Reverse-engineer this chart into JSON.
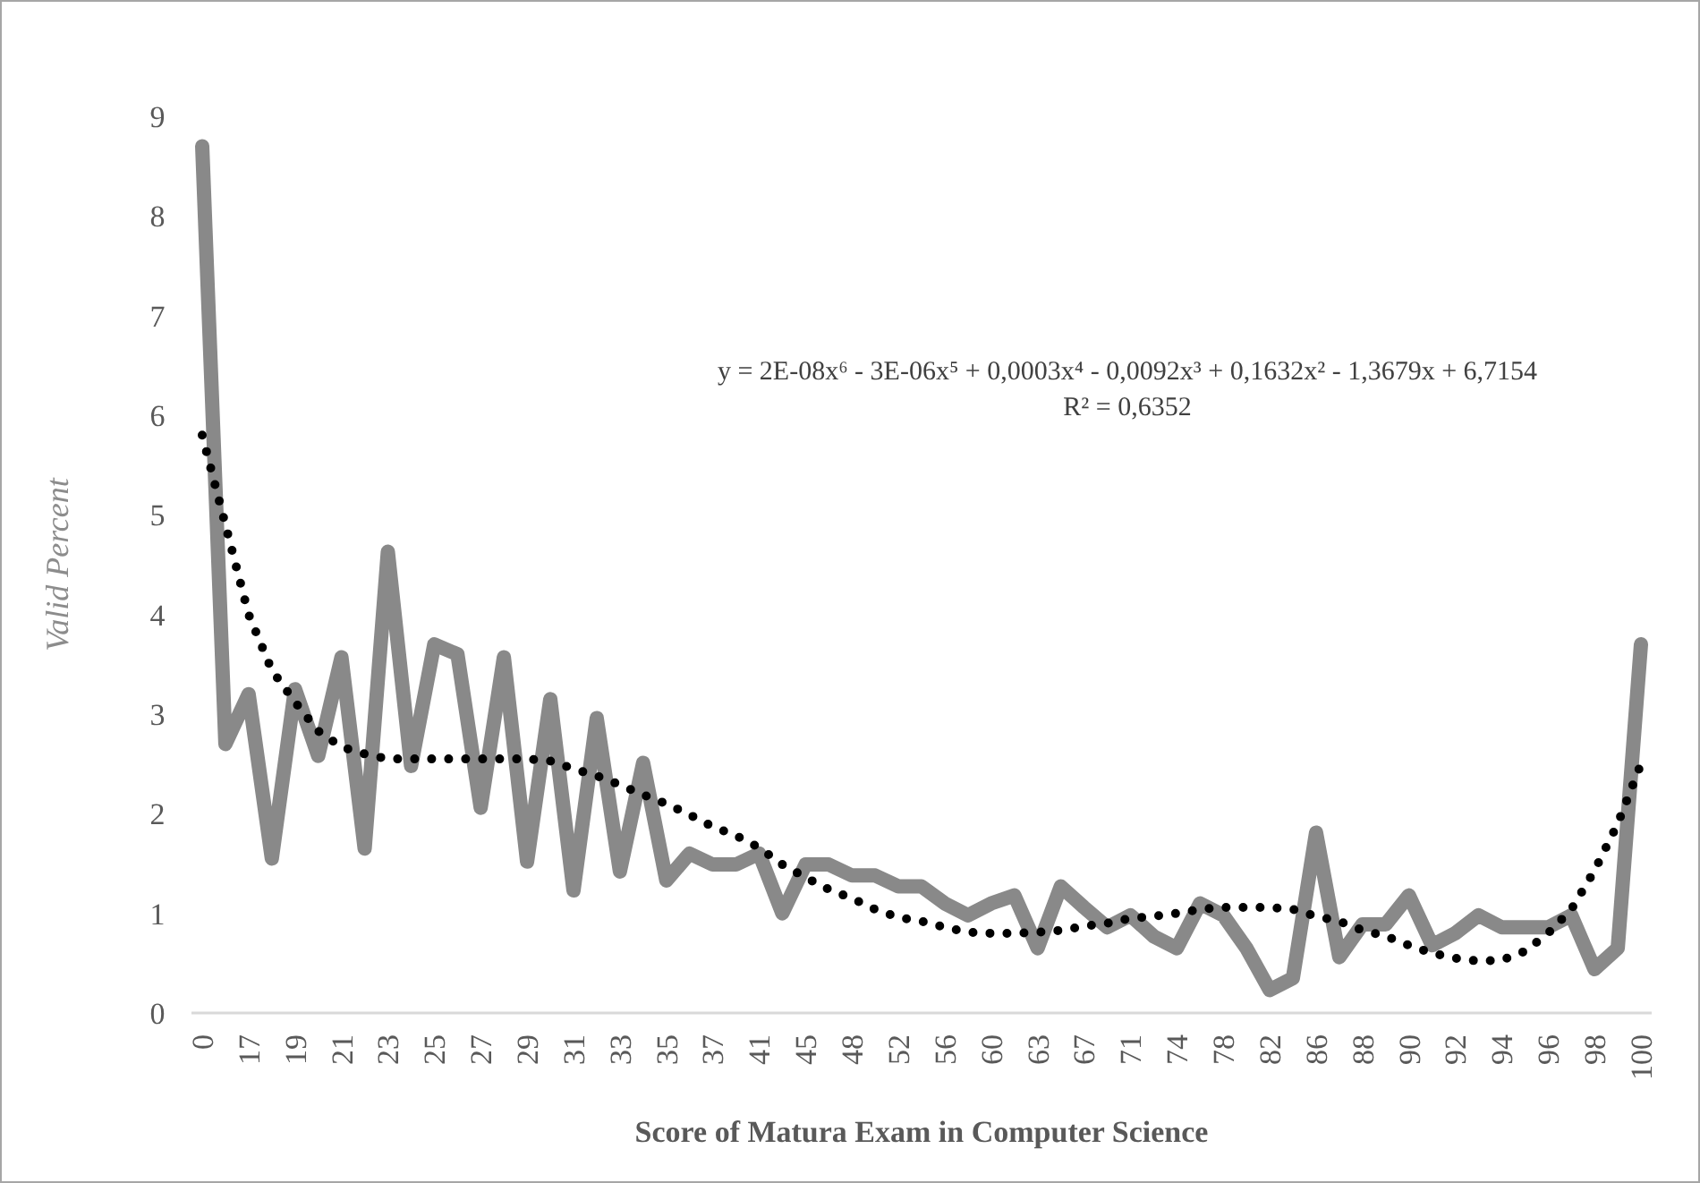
{
  "chart_data": {
    "type": "line",
    "xlabel": "Score of Matura Exam in Computer Science",
    "ylabel": "Valid Percent",
    "annotations": [
      "y = 2E-08x⁶ - 3E-06x⁵ + 0,0003x⁴ - 0,0092x³ + 0,1632x² - 1,3679x + 6,7154",
      "R² = 0,6352"
    ],
    "categories": [
      "0",
      null,
      "17",
      null,
      "19",
      null,
      "21",
      null,
      "23",
      null,
      "25",
      null,
      "27",
      null,
      "29",
      null,
      "31",
      null,
      "33",
      null,
      "35",
      null,
      "37",
      null,
      "41",
      null,
      "45",
      null,
      "48",
      null,
      "52",
      null,
      "56",
      null,
      "60",
      null,
      "63",
      null,
      "67",
      null,
      "71",
      null,
      "74",
      null,
      "78",
      null,
      "82",
      null,
      "86",
      null,
      "88",
      null,
      "90",
      null,
      "92",
      null,
      "94",
      null,
      "96",
      null,
      "98",
      null,
      "100"
    ],
    "series": [
      {
        "color": "#898989",
        "line_style": "solid",
        "values": [
          8.7,
          2.7,
          3.2,
          1.55,
          3.25,
          2.58,
          3.57,
          1.65,
          4.63,
          2.48,
          3.7,
          3.6,
          2.06,
          3.57,
          1.52,
          3.15,
          1.23,
          2.96,
          1.42,
          2.51,
          1.33,
          1.6,
          1.49,
          1.49,
          1.6,
          1.0,
          1.49,
          1.49,
          1.38,
          1.38,
          1.27,
          1.27,
          1.1,
          0.98,
          1.1,
          1.18,
          0.65,
          1.27,
          1.06,
          0.86,
          0.98,
          0.77,
          0.65,
          1.1,
          0.98,
          0.65,
          0.23,
          0.35,
          1.81,
          0.56,
          0.89,
          0.89,
          1.18,
          0.68,
          0.8,
          0.98,
          0.86,
          0.86,
          0.86,
          0.98,
          0.44,
          0.65,
          3.7
        ]
      },
      {
        "type": "line",
        "color": "#000000",
        "line_style": "dotted",
        "values": [
          5.8,
          4.9,
          4.0,
          3.44,
          3.12,
          2.83,
          2.67,
          2.6,
          2.55,
          2.55,
          2.55,
          2.55,
          2.55,
          2.55,
          2.55,
          2.53,
          2.45,
          2.38,
          2.29,
          2.19,
          2.1,
          1.99,
          1.87,
          1.78,
          1.66,
          1.49,
          1.36,
          1.24,
          1.15,
          1.04,
          0.96,
          0.92,
          0.86,
          0.81,
          0.8,
          0.8,
          0.81,
          0.83,
          0.87,
          0.9,
          0.95,
          0.97,
          1.0,
          1.04,
          1.06,
          1.06,
          1.06,
          1.04,
          0.97,
          0.92,
          0.83,
          0.77,
          0.68,
          0.6,
          0.55,
          0.52,
          0.53,
          0.62,
          0.8,
          1.04,
          1.43,
          1.9,
          2.5
        ]
      }
    ],
    "ylim": [
      0,
      9
    ],
    "yticks": [
      0,
      1,
      2,
      3,
      4,
      5,
      6,
      7,
      8,
      9
    ],
    "grid": false
  }
}
